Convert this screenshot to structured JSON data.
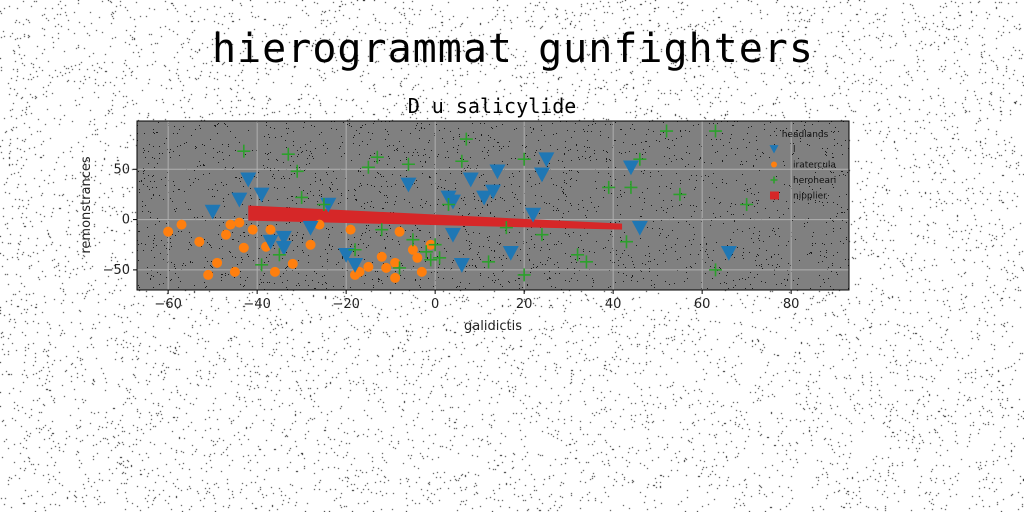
{
  "figure": {
    "suptitle": "hierogrammat gunfighters"
  },
  "chart_data": {
    "type": "scatter",
    "title": "D u salicylide",
    "xlabel": "galidictis",
    "ylabel": "remonstrances",
    "xlim": [
      -67,
      93
    ],
    "ylim": [
      -70,
      98
    ],
    "xticks": [
      -60,
      -40,
      -20,
      0,
      20,
      40,
      60,
      80
    ],
    "yticks": [
      -50,
      0,
      50
    ],
    "grid": true,
    "background": "#808080",
    "legend": {
      "title": "headlands",
      "placement": "top-right"
    },
    "series": [
      {
        "name": "l",
        "marker": "triangle-down",
        "color": "#1f77b4",
        "points": [
          [
            -50,
            8
          ],
          [
            -42,
            40
          ],
          [
            -44,
            20
          ],
          [
            -39,
            25
          ],
          [
            -37,
            -22
          ],
          [
            -34,
            -28
          ],
          [
            -34,
            -18
          ],
          [
            -28,
            -8
          ],
          [
            -24,
            15
          ],
          [
            -20,
            -35
          ],
          [
            -18,
            -45
          ],
          [
            -6,
            35
          ],
          [
            3,
            22
          ],
          [
            4,
            18
          ],
          [
            4,
            -15
          ],
          [
            6,
            -45
          ],
          [
            8,
            40
          ],
          [
            11,
            22
          ],
          [
            13,
            28
          ],
          [
            14,
            48
          ],
          [
            17,
            -33
          ],
          [
            22,
            5
          ],
          [
            24,
            45
          ],
          [
            25,
            60
          ],
          [
            44,
            52
          ],
          [
            46,
            -8
          ],
          [
            66,
            -33
          ]
        ]
      },
      {
        "name": "iratercula",
        "marker": "circle",
        "color": "#ff7f0e",
        "points": [
          [
            -60,
            -12
          ],
          [
            -57,
            -5
          ],
          [
            -53,
            -22
          ],
          [
            -51,
            -55
          ],
          [
            -49,
            -43
          ],
          [
            -47,
            -15
          ],
          [
            -46,
            -5
          ],
          [
            -45,
            -52
          ],
          [
            -44,
            -3
          ],
          [
            -43,
            -28
          ],
          [
            -41,
            -10
          ],
          [
            -38,
            -27
          ],
          [
            -37,
            -10
          ],
          [
            -36,
            -52
          ],
          [
            -32,
            -44
          ],
          [
            -28,
            -25
          ],
          [
            -26,
            -5
          ],
          [
            -19,
            -10
          ],
          [
            -18,
            -55
          ],
          [
            -17,
            -52
          ],
          [
            -15,
            -47
          ],
          [
            -12,
            -37
          ],
          [
            -11,
            -48
          ],
          [
            -9,
            -43
          ],
          [
            -9,
            -58
          ],
          [
            -8,
            -12
          ],
          [
            -5,
            -30
          ],
          [
            -4,
            -38
          ],
          [
            -3,
            -52
          ],
          [
            -1,
            -25
          ]
        ]
      },
      {
        "name": "heroheari",
        "marker": "plus",
        "color": "#2ca02c",
        "points": [
          [
            -43,
            68
          ],
          [
            -39,
            -45
          ],
          [
            -35,
            -35
          ],
          [
            -33,
            65
          ],
          [
            -31,
            48
          ],
          [
            -30,
            22
          ],
          [
            -25,
            15
          ],
          [
            -18,
            -30
          ],
          [
            -15,
            52
          ],
          [
            -13,
            62
          ],
          [
            -12,
            -10
          ],
          [
            -8,
            -48
          ],
          [
            -6,
            55
          ],
          [
            -5,
            -20
          ],
          [
            -2,
            -32
          ],
          [
            -1,
            -40
          ],
          [
            0,
            -25
          ],
          [
            1,
            -38
          ],
          [
            3,
            15
          ],
          [
            6,
            58
          ],
          [
            7,
            80
          ],
          [
            12,
            -42
          ],
          [
            16,
            -8
          ],
          [
            20,
            60
          ],
          [
            20,
            -55
          ],
          [
            24,
            -15
          ],
          [
            32,
            -35
          ],
          [
            34,
            -42
          ],
          [
            39,
            32
          ],
          [
            43,
            -22
          ],
          [
            44,
            32
          ],
          [
            46,
            60
          ],
          [
            52,
            88
          ],
          [
            55,
            25
          ],
          [
            63,
            88
          ],
          [
            63,
            -50
          ],
          [
            70,
            15
          ]
        ]
      },
      {
        "name": "nipplier",
        "marker": "band",
        "color": "#d62728",
        "x": [
          -42,
          42
        ],
        "y_top": [
          14,
          -4
        ],
        "y_bottom": [
          -1,
          -10
        ]
      }
    ]
  }
}
